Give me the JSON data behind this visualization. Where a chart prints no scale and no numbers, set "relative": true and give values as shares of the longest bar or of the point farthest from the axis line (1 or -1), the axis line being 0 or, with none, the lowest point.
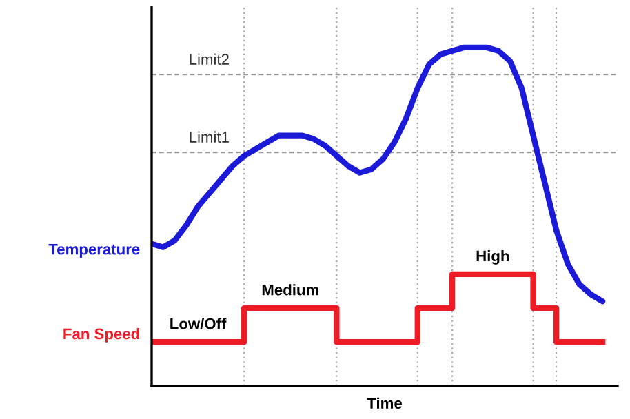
{
  "chart_data": {
    "type": "line",
    "relative": true,
    "xlabel": "Time",
    "categories": [
      null,
      null,
      null,
      null,
      null,
      null,
      null,
      null,
      null,
      null,
      null,
      null,
      null,
      null,
      null,
      null,
      null,
      null,
      null,
      null,
      null,
      null,
      null,
      null,
      null,
      null,
      null,
      null,
      null,
      null,
      null,
      null,
      null,
      null,
      null,
      null,
      null,
      null,
      null,
      null
    ],
    "series": [
      {
        "name": "Temperature",
        "color": "#1a1ad8",
        "values": [
          0.42,
          0.41,
          0.43,
          0.475,
          0.53,
          0.57,
          0.61,
          0.65,
          0.68,
          0.7,
          0.72,
          0.74,
          0.74,
          0.74,
          0.73,
          0.71,
          0.68,
          0.65,
          0.63,
          0.64,
          0.67,
          0.72,
          0.79,
          0.88,
          0.95,
          0.98,
          0.99,
          1,
          1,
          1,
          0.99,
          0.96,
          0.88,
          0.74,
          0.6,
          0.46,
          0.36,
          0.3,
          0.27,
          0.25
        ]
      },
      {
        "name": "Fan Speed",
        "color": "#ee1c24",
        "type": "step",
        "values": [
          0.13,
          0.13,
          0.13,
          0.13,
          0.13,
          0.13,
          0.13,
          0.13,
          0.23,
          0.23,
          0.23,
          0.23,
          0.23,
          0.23,
          0.23,
          0.23,
          0.13,
          0.13,
          0.13,
          0.13,
          0.13,
          0.13,
          0.13,
          0.23,
          0.23,
          0.23,
          0.33,
          0.33,
          0.33,
          0.33,
          0.33,
          0.33,
          0.33,
          0.23,
          0.23,
          0.13,
          0.13,
          0.13,
          0.13,
          0.13
        ]
      }
    ],
    "ref_lines": [
      {
        "axis": "y",
        "value": 0.69,
        "label": "Limit1",
        "color": "#999999",
        "line_style": "dashed"
      },
      {
        "axis": "y",
        "value": 0.92,
        "label": "Limit2",
        "color": "#999999",
        "line_style": "dashed"
      }
    ],
    "annotations": [
      "Low/Off",
      "Medium",
      "High"
    ],
    "grid": "x"
  }
}
